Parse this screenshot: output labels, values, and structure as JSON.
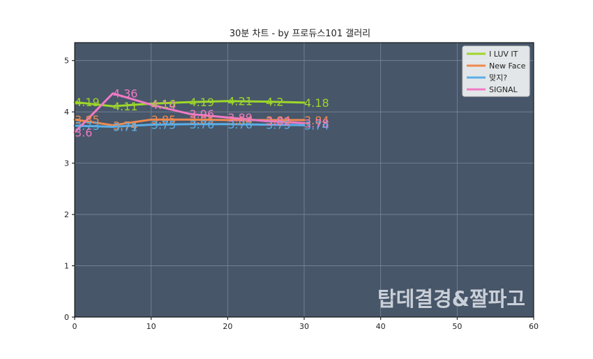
{
  "chart_data": {
    "type": "line",
    "title": "30분 차트 - by 프로듀스101 갤러리",
    "xlabel": "",
    "ylabel": "",
    "xlim": [
      0,
      60
    ],
    "ylim": [
      0,
      5.35
    ],
    "xticks": [
      0,
      10,
      20,
      30,
      40,
      50,
      60
    ],
    "yticks": [
      0,
      1,
      2,
      3,
      4,
      5
    ],
    "grid": true,
    "legend_position": "top-right",
    "plot_background": "#475669",
    "watermark": "탑데결경&짤파고",
    "series": [
      {
        "name": "I LUV IT",
        "color": "#9ed72a",
        "x": [
          0,
          5,
          10,
          15,
          20,
          25,
          30
        ],
        "values": [
          4.19,
          4.11,
          4.16,
          4.19,
          4.21,
          4.2,
          4.18
        ],
        "label_x": [
          0,
          5,
          10,
          15,
          20,
          25,
          30
        ],
        "label_values": [
          4.19,
          4.11,
          4.16,
          4.19,
          4.21,
          4.2,
          4.18
        ],
        "labels": [
          "4.19",
          "4.11",
          "4.16",
          "4.19",
          "4.21",
          "4.2",
          "4.18"
        ]
      },
      {
        "name": "New Face",
        "color": "#ef8a4f",
        "x": [
          0,
          5,
          10,
          15,
          20,
          25,
          30
        ],
        "values": [
          3.85,
          3.74,
          3.85,
          3.85,
          3.84,
          3.84,
          3.84
        ],
        "label_x": [
          0,
          5,
          10,
          15,
          20,
          25,
          30
        ],
        "label_values": [
          3.85,
          3.74,
          3.85,
          3.85,
          3.84,
          3.84,
          3.84
        ],
        "labels": [
          "3.85",
          "3.74",
          "3.85",
          "3.85",
          "3.84",
          "3.84",
          "3.84"
        ]
      },
      {
        "name": "맞지?",
        "color": "#5aafe8",
        "x": [
          0,
          5,
          10,
          15,
          20,
          25,
          30
        ],
        "values": [
          3.73,
          3.71,
          3.75,
          3.76,
          3.76,
          3.75,
          3.74
        ],
        "label_x": [
          0,
          5,
          10,
          15,
          20,
          25,
          30
        ],
        "label_values": [
          3.73,
          3.71,
          3.75,
          3.76,
          3.76,
          3.75,
          3.74
        ],
        "labels": [
          "3.73",
          "3.71",
          "3.75",
          "3.76",
          "3.76",
          "3.75",
          "3.74"
        ]
      },
      {
        "name": "SIGNAL",
        "color": "#f07ac4",
        "x": [
          0,
          5,
          10,
          15,
          20,
          25,
          30
        ],
        "values": [
          3.6,
          4.36,
          4.14,
          3.96,
          3.89,
          3.82,
          3.78
        ],
        "label_x": [
          0,
          5,
          10,
          15,
          20,
          25,
          30
        ],
        "label_values": [
          3.6,
          4.36,
          4.14,
          3.96,
          3.89,
          3.82,
          3.78
        ],
        "labels": [
          "3.6",
          "4.36",
          "4.14",
          "3.96",
          "3.89",
          "3.82",
          "3.78"
        ]
      }
    ]
  }
}
